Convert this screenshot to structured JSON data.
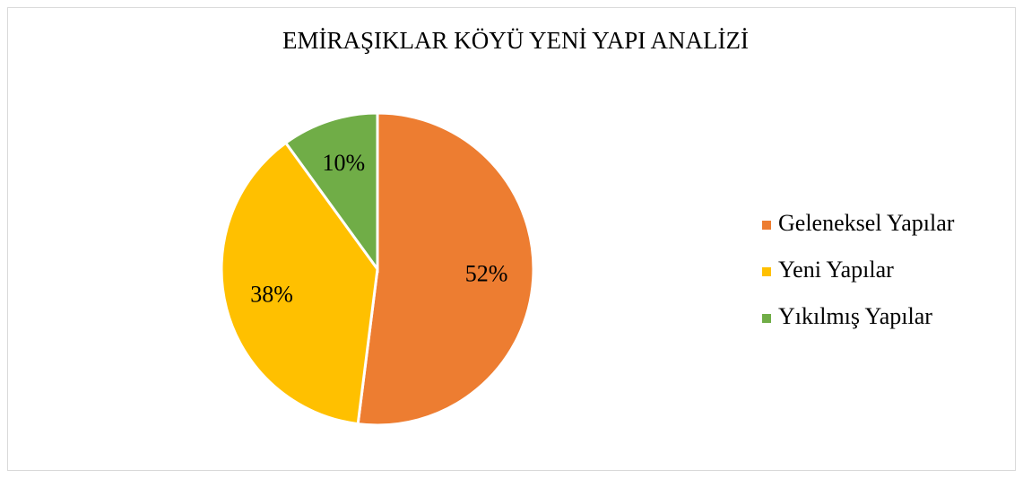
{
  "chart_data": {
    "type": "pie",
    "title": "EMİRAŞIKLAR KÖYÜ YENİ YAPI ANALİZİ",
    "categories": [
      "Geleneksel Yapılar",
      "Yeni Yapılar",
      "Yıkılmış Yapılar"
    ],
    "values": [
      52,
      38,
      10
    ],
    "value_labels": [
      "52%",
      "38%",
      "10%"
    ],
    "colors": [
      "#ed7d31",
      "#ffc000",
      "#70ad47"
    ],
    "legend": "right"
  }
}
